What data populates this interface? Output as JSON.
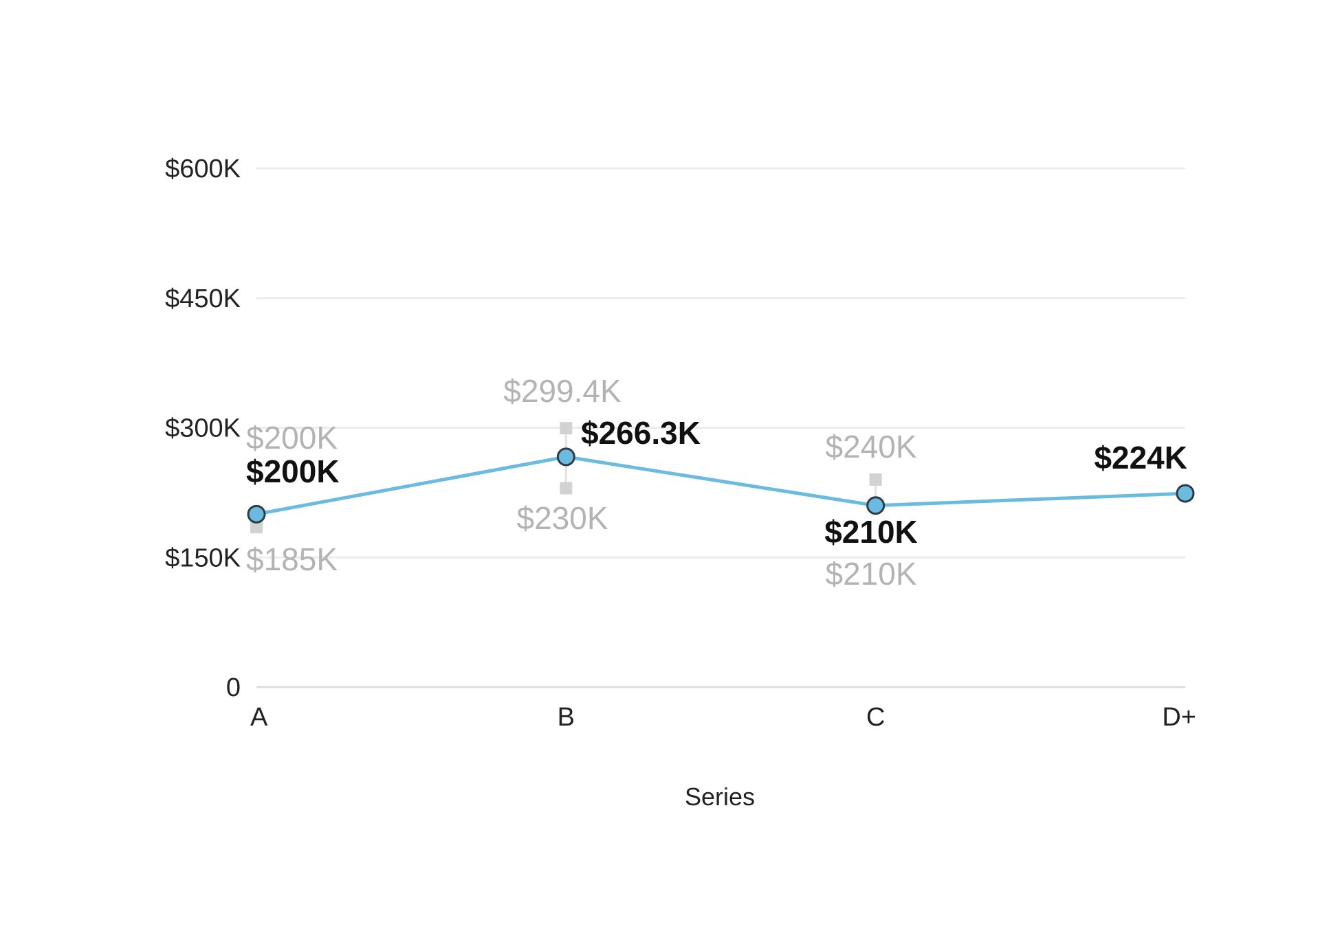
{
  "chart_data": {
    "type": "line",
    "title": "",
    "xlabel": "Series",
    "ylabel": "",
    "categories": [
      "A",
      "B",
      "C",
      "D+"
    ],
    "ylim": [
      0,
      600000
    ],
    "yticks": [
      0,
      150000,
      300000,
      450000,
      600000
    ],
    "ytick_labels": [
      "0",
      "$150K",
      "$300K",
      "$450K",
      "$600K"
    ],
    "grid": true,
    "series": [
      {
        "name": "Value",
        "values": [
          200000,
          266300,
          210000,
          224000
        ],
        "labels": [
          "$200K",
          "$266.3K",
          "$210K",
          "$224K"
        ],
        "color": "#6bbbe0"
      }
    ],
    "ranges": [
      {
        "category": "A",
        "high": 200000,
        "low": 185000,
        "high_label": "$200K",
        "low_label": "$185K"
      },
      {
        "category": "B",
        "high": 299400,
        "low": 230000,
        "high_label": "$299.4K",
        "low_label": "$230K"
      },
      {
        "category": "C",
        "high": 240000,
        "low": 210000,
        "high_label": "$240K",
        "low_label": "$210K"
      }
    ],
    "point_color": "#6bbbe0",
    "range_color": "#b3b3b3"
  }
}
